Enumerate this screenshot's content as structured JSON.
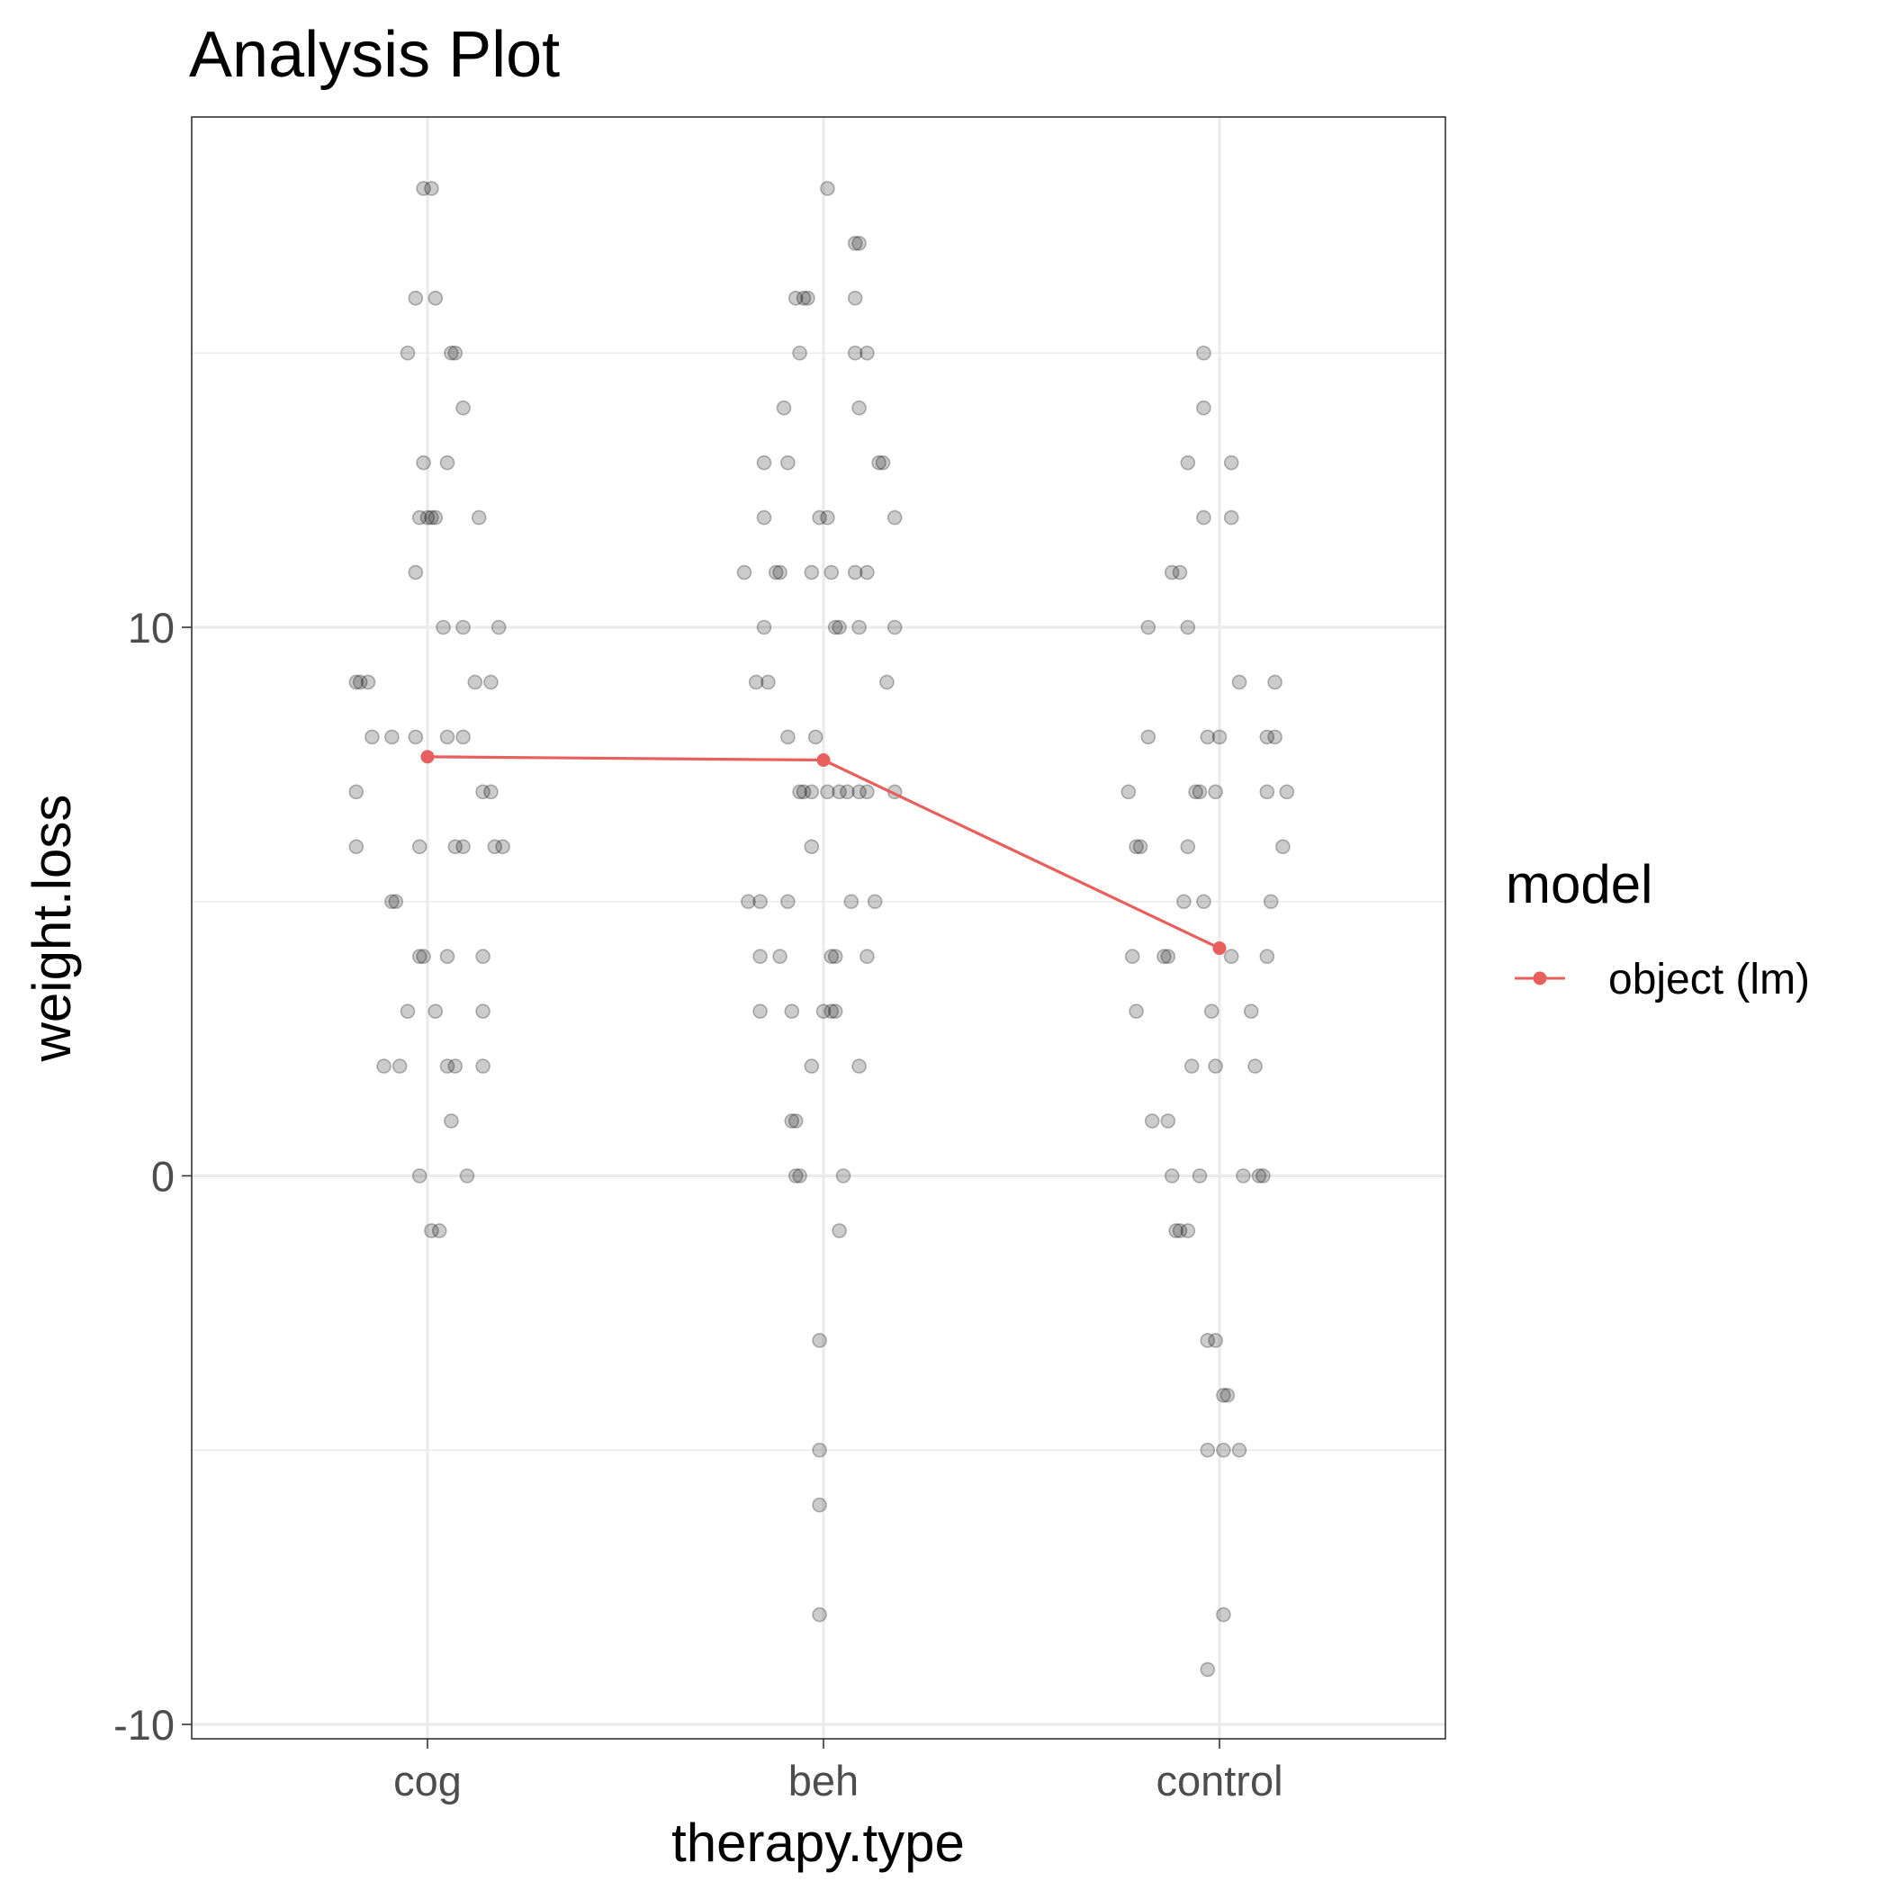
{
  "chart_data": {
    "type": "scatter",
    "title": "Analysis Plot",
    "xlabel": "therapy.type",
    "ylabel": "weight.loss",
    "categories": [
      "cog",
      "beh",
      "control"
    ],
    "ylim": [
      -10.2,
      19.5
    ],
    "y_ticks": [
      -10,
      0,
      10
    ],
    "y_tick_labels": [
      "-10",
      "0",
      "10"
    ],
    "grid": true,
    "legend": {
      "title": "model",
      "position": "right",
      "entries": [
        {
          "label": "object (lm)",
          "color": "#e8605e"
        }
      ]
    },
    "series": [
      {
        "type": "jitter-points",
        "color": "#000000",
        "points": [
          {
            "x": -0.01,
            "y": 18
          },
          {
            "x": 0.01,
            "y": 18
          },
          {
            "x": -0.03,
            "y": 16
          },
          {
            "x": 0.02,
            "y": 16
          },
          {
            "x": -0.05,
            "y": 15
          },
          {
            "x": 0.06,
            "y": 15
          },
          {
            "x": 0.07,
            "y": 15
          },
          {
            "x": 0.09,
            "y": 14
          },
          {
            "x": -0.01,
            "y": 13
          },
          {
            "x": 0.05,
            "y": 13
          },
          {
            "x": -0.02,
            "y": 12
          },
          {
            "x": 0.0,
            "y": 12
          },
          {
            "x": 0.01,
            "y": 12
          },
          {
            "x": 0.02,
            "y": 12
          },
          {
            "x": 0.13,
            "y": 12
          },
          {
            "x": -0.03,
            "y": 11
          },
          {
            "x": 0.04,
            "y": 10
          },
          {
            "x": 0.09,
            "y": 10
          },
          {
            "x": 0.18,
            "y": 10
          },
          {
            "x": -0.18,
            "y": 9
          },
          {
            "x": -0.17,
            "y": 9
          },
          {
            "x": -0.15,
            "y": 9
          },
          {
            "x": 0.12,
            "y": 9
          },
          {
            "x": 0.16,
            "y": 9
          },
          {
            "x": -0.14,
            "y": 8
          },
          {
            "x": -0.09,
            "y": 8
          },
          {
            "x": -0.03,
            "y": 8
          },
          {
            "x": 0.05,
            "y": 8
          },
          {
            "x": 0.09,
            "y": 8
          },
          {
            "x": -0.18,
            "y": 7
          },
          {
            "x": 0.14,
            "y": 7
          },
          {
            "x": 0.16,
            "y": 7
          },
          {
            "x": -0.18,
            "y": 6
          },
          {
            "x": -0.02,
            "y": 6
          },
          {
            "x": 0.07,
            "y": 6
          },
          {
            "x": 0.09,
            "y": 6
          },
          {
            "x": 0.17,
            "y": 6
          },
          {
            "x": 0.19,
            "y": 6
          },
          {
            "x": -0.09,
            "y": 5
          },
          {
            "x": -0.08,
            "y": 5
          },
          {
            "x": -0.02,
            "y": 4
          },
          {
            "x": -0.01,
            "y": 4
          },
          {
            "x": 0.05,
            "y": 4
          },
          {
            "x": 0.14,
            "y": 4
          },
          {
            "x": -0.05,
            "y": 3
          },
          {
            "x": 0.02,
            "y": 3
          },
          {
            "x": 0.14,
            "y": 3
          },
          {
            "x": -0.11,
            "y": 2
          },
          {
            "x": -0.07,
            "y": 2
          },
          {
            "x": 0.05,
            "y": 2
          },
          {
            "x": 0.07,
            "y": 2
          },
          {
            "x": 0.14,
            "y": 2
          },
          {
            "x": 0.06,
            "y": 1
          },
          {
            "x": -0.02,
            "y": 0
          },
          {
            "x": 0.1,
            "y": 0
          },
          {
            "x": 0.01,
            "y": -1
          },
          {
            "x": 0.03,
            "y": -1
          },
          {
            "x": 1.01,
            "y": 18
          },
          {
            "x": 1.08,
            "y": 17
          },
          {
            "x": 1.09,
            "y": 17
          },
          {
            "x": 0.93,
            "y": 16
          },
          {
            "x": 0.95,
            "y": 16
          },
          {
            "x": 0.96,
            "y": 16
          },
          {
            "x": 1.08,
            "y": 16
          },
          {
            "x": 0.94,
            "y": 15
          },
          {
            "x": 1.08,
            "y": 15
          },
          {
            "x": 1.11,
            "y": 15
          },
          {
            "x": 0.9,
            "y": 14
          },
          {
            "x": 1.09,
            "y": 14
          },
          {
            "x": 0.85,
            "y": 13
          },
          {
            "x": 0.91,
            "y": 13
          },
          {
            "x": 1.14,
            "y": 13
          },
          {
            "x": 1.15,
            "y": 13
          },
          {
            "x": 0.85,
            "y": 12
          },
          {
            "x": 0.99,
            "y": 12
          },
          {
            "x": 1.01,
            "y": 12
          },
          {
            "x": 1.18,
            "y": 12
          },
          {
            "x": 0.8,
            "y": 11
          },
          {
            "x": 0.88,
            "y": 11
          },
          {
            "x": 0.89,
            "y": 11
          },
          {
            "x": 0.97,
            "y": 11
          },
          {
            "x": 1.02,
            "y": 11
          },
          {
            "x": 1.08,
            "y": 11
          },
          {
            "x": 1.11,
            "y": 11
          },
          {
            "x": 0.85,
            "y": 10
          },
          {
            "x": 1.03,
            "y": 10
          },
          {
            "x": 1.04,
            "y": 10
          },
          {
            "x": 1.09,
            "y": 10
          },
          {
            "x": 1.18,
            "y": 10
          },
          {
            "x": 0.83,
            "y": 9
          },
          {
            "x": 0.86,
            "y": 9
          },
          {
            "x": 1.16,
            "y": 9
          },
          {
            "x": 0.91,
            "y": 8
          },
          {
            "x": 0.98,
            "y": 8
          },
          {
            "x": 0.94,
            "y": 7
          },
          {
            "x": 0.95,
            "y": 7
          },
          {
            "x": 0.97,
            "y": 7
          },
          {
            "x": 1.01,
            "y": 7
          },
          {
            "x": 1.04,
            "y": 7
          },
          {
            "x": 1.06,
            "y": 7
          },
          {
            "x": 1.09,
            "y": 7
          },
          {
            "x": 1.11,
            "y": 7
          },
          {
            "x": 1.18,
            "y": 7
          },
          {
            "x": 0.97,
            "y": 6
          },
          {
            "x": 0.81,
            "y": 5
          },
          {
            "x": 0.84,
            "y": 5
          },
          {
            "x": 0.91,
            "y": 5
          },
          {
            "x": 1.07,
            "y": 5
          },
          {
            "x": 1.13,
            "y": 5
          },
          {
            "x": 0.84,
            "y": 4
          },
          {
            "x": 0.89,
            "y": 4
          },
          {
            "x": 1.02,
            "y": 4
          },
          {
            "x": 1.03,
            "y": 4
          },
          {
            "x": 1.11,
            "y": 4
          },
          {
            "x": 0.84,
            "y": 3
          },
          {
            "x": 0.92,
            "y": 3
          },
          {
            "x": 1.0,
            "y": 3
          },
          {
            "x": 1.02,
            "y": 3
          },
          {
            "x": 1.03,
            "y": 3
          },
          {
            "x": 0.97,
            "y": 2
          },
          {
            "x": 1.09,
            "y": 2
          },
          {
            "x": 0.92,
            "y": 1
          },
          {
            "x": 0.93,
            "y": 1
          },
          {
            "x": 0.93,
            "y": 0
          },
          {
            "x": 0.94,
            "y": 0
          },
          {
            "x": 1.05,
            "y": 0
          },
          {
            "x": 1.04,
            "y": -1
          },
          {
            "x": 0.99,
            "y": -3
          },
          {
            "x": 0.99,
            "y": -5
          },
          {
            "x": 0.99,
            "y": -6
          },
          {
            "x": 0.99,
            "y": -8
          },
          {
            "x": 1.96,
            "y": 15
          },
          {
            "x": 1.96,
            "y": 14
          },
          {
            "x": 1.92,
            "y": 13
          },
          {
            "x": 2.03,
            "y": 13
          },
          {
            "x": 1.96,
            "y": 12
          },
          {
            "x": 2.03,
            "y": 12
          },
          {
            "x": 1.88,
            "y": 11
          },
          {
            "x": 1.9,
            "y": 11
          },
          {
            "x": 1.82,
            "y": 10
          },
          {
            "x": 1.92,
            "y": 10
          },
          {
            "x": 2.05,
            "y": 9
          },
          {
            "x": 2.14,
            "y": 9
          },
          {
            "x": 1.82,
            "y": 8
          },
          {
            "x": 1.97,
            "y": 8
          },
          {
            "x": 2.0,
            "y": 8
          },
          {
            "x": 2.12,
            "y": 8
          },
          {
            "x": 2.14,
            "y": 8
          },
          {
            "x": 1.77,
            "y": 7
          },
          {
            "x": 1.94,
            "y": 7
          },
          {
            "x": 1.95,
            "y": 7
          },
          {
            "x": 1.99,
            "y": 7
          },
          {
            "x": 2.12,
            "y": 7
          },
          {
            "x": 2.17,
            "y": 7
          },
          {
            "x": 1.79,
            "y": 6
          },
          {
            "x": 1.8,
            "y": 6
          },
          {
            "x": 1.92,
            "y": 6
          },
          {
            "x": 2.16,
            "y": 6
          },
          {
            "x": 1.91,
            "y": 5
          },
          {
            "x": 1.96,
            "y": 5
          },
          {
            "x": 2.13,
            "y": 5
          },
          {
            "x": 1.78,
            "y": 4
          },
          {
            "x": 1.86,
            "y": 4
          },
          {
            "x": 1.87,
            "y": 4
          },
          {
            "x": 2.03,
            "y": 4
          },
          {
            "x": 2.12,
            "y": 4
          },
          {
            "x": 1.79,
            "y": 3
          },
          {
            "x": 1.98,
            "y": 3
          },
          {
            "x": 2.08,
            "y": 3
          },
          {
            "x": 1.93,
            "y": 2
          },
          {
            "x": 1.99,
            "y": 2
          },
          {
            "x": 2.09,
            "y": 2
          },
          {
            "x": 1.83,
            "y": 1
          },
          {
            "x": 1.87,
            "y": 1
          },
          {
            "x": 1.88,
            "y": 0
          },
          {
            "x": 1.95,
            "y": 0
          },
          {
            "x": 2.06,
            "y": 0
          },
          {
            "x": 2.1,
            "y": 0
          },
          {
            "x": 2.11,
            "y": 0
          },
          {
            "x": 1.89,
            "y": -1
          },
          {
            "x": 1.9,
            "y": -1
          },
          {
            "x": 1.92,
            "y": -1
          },
          {
            "x": 1.97,
            "y": -3
          },
          {
            "x": 1.99,
            "y": -3
          },
          {
            "x": 2.01,
            "y": -4
          },
          {
            "x": 2.02,
            "y": -4
          },
          {
            "x": 1.97,
            "y": -5
          },
          {
            "x": 2.01,
            "y": -5
          },
          {
            "x": 2.05,
            "y": -5
          },
          {
            "x": 2.01,
            "y": -8
          },
          {
            "x": 1.97,
            "y": -9
          }
        ]
      },
      {
        "name": "object (lm)",
        "type": "line",
        "color": "#e8605e",
        "x": [
          "cog",
          "beh",
          "control"
        ],
        "values": [
          7.64,
          7.58,
          4.15
        ]
      }
    ]
  }
}
